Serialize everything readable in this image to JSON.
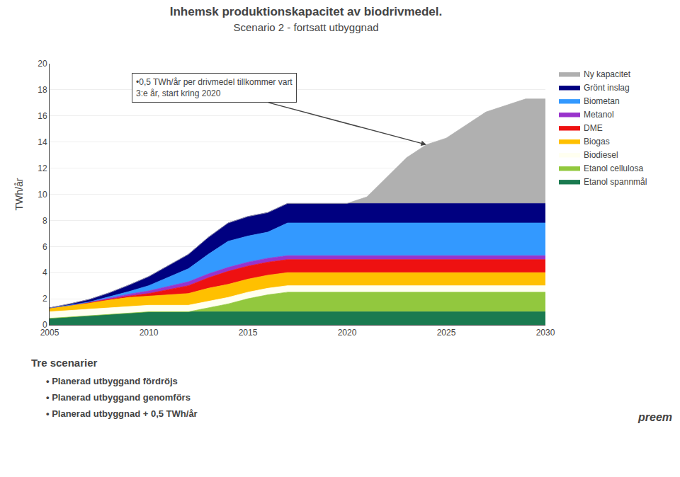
{
  "chart_data": {
    "type": "area",
    "stacked": true,
    "title": "Inhemsk produktionskapacitet av biodrivmedel.",
    "subtitle": "Scenario 2 - fortsatt utbyggnad",
    "ylabel": "TWh/år",
    "x": [
      2005,
      2006,
      2007,
      2008,
      2009,
      2010,
      2011,
      2012,
      2013,
      2014,
      2015,
      2016,
      2017,
      2018,
      2019,
      2020,
      2021,
      2022,
      2023,
      2024,
      2025,
      2026,
      2027,
      2028,
      2029,
      2030
    ],
    "xlim": [
      2005,
      2030
    ],
    "xticks": [
      2005,
      2010,
      2015,
      2020,
      2025,
      2030
    ],
    "ylim": [
      0,
      20
    ],
    "yticks": [
      0,
      2,
      4,
      6,
      8,
      10,
      12,
      14,
      16,
      18,
      20
    ],
    "grid": "y",
    "legend": "right",
    "series": [
      {
        "name": "Etanol spannmål",
        "color": "#1A7A50",
        "values": [
          0.5,
          0.6,
          0.7,
          0.8,
          0.9,
          1.0,
          1.0,
          1.0,
          1.0,
          1.0,
          1.0,
          1.0,
          1.0,
          1.0,
          1.0,
          1.0,
          1.0,
          1.0,
          1.0,
          1.0,
          1.0,
          1.0,
          1.0,
          1.0,
          1.0,
          1.0
        ]
      },
      {
        "name": "Etanol cellulosa",
        "color": "#92C83E",
        "values": [
          0.0,
          0.0,
          0.0,
          0.0,
          0.0,
          0.0,
          0.0,
          0.0,
          0.3,
          0.6,
          1.0,
          1.3,
          1.5,
          1.5,
          1.5,
          1.5,
          1.5,
          1.5,
          1.5,
          1.5,
          1.5,
          1.5,
          1.5,
          1.5,
          1.5,
          1.5
        ]
      },
      {
        "name": "Biodiesel",
        "color": "#FFFFF0",
        "values": [
          0.5,
          0.5,
          0.5,
          0.5,
          0.5,
          0.5,
          0.5,
          0.5,
          0.5,
          0.5,
          0.5,
          0.5,
          0.5,
          0.5,
          0.5,
          0.5,
          0.5,
          0.5,
          0.5,
          0.5,
          0.5,
          0.5,
          0.5,
          0.5,
          0.5,
          0.5
        ]
      },
      {
        "name": "Biogas",
        "color": "#FFC000",
        "values": [
          0.3,
          0.4,
          0.5,
          0.6,
          0.7,
          0.7,
          0.8,
          0.9,
          1.0,
          1.0,
          1.0,
          1.0,
          1.0,
          1.0,
          1.0,
          1.0,
          1.0,
          1.0,
          1.0,
          1.0,
          1.0,
          1.0,
          1.0,
          1.0,
          1.0,
          1.0
        ]
      },
      {
        "name": "DME",
        "color": "#EE1111",
        "values": [
          0.0,
          0.0,
          0.0,
          0.05,
          0.1,
          0.2,
          0.4,
          0.6,
          0.8,
          1.0,
          1.0,
          1.0,
          1.0,
          1.0,
          1.0,
          1.0,
          1.0,
          1.0,
          1.0,
          1.0,
          1.0,
          1.0,
          1.0,
          1.0,
          1.0,
          1.0
        ]
      },
      {
        "name": "Metanol",
        "color": "#9933CC",
        "values": [
          0.0,
          0.0,
          0.05,
          0.1,
          0.15,
          0.2,
          0.25,
          0.3,
          0.3,
          0.3,
          0.3,
          0.3,
          0.3,
          0.3,
          0.3,
          0.3,
          0.3,
          0.3,
          0.3,
          0.3,
          0.3,
          0.3,
          0.3,
          0.3,
          0.3,
          0.3
        ]
      },
      {
        "name": "Biometan",
        "color": "#3399FF",
        "values": [
          0.0,
          0.0,
          0.0,
          0.1,
          0.2,
          0.4,
          0.7,
          1.0,
          1.5,
          2.0,
          2.0,
          2.0,
          2.5,
          2.5,
          2.5,
          2.5,
          2.5,
          2.5,
          2.5,
          2.5,
          2.5,
          2.5,
          2.5,
          2.5,
          2.5,
          2.5
        ]
      },
      {
        "name": "Grönt inslag",
        "color": "#000080",
        "values": [
          0.0,
          0.1,
          0.2,
          0.3,
          0.5,
          0.7,
          0.9,
          1.1,
          1.3,
          1.4,
          1.5,
          1.5,
          1.5,
          1.5,
          1.5,
          1.5,
          1.5,
          1.5,
          1.5,
          1.5,
          1.5,
          1.5,
          1.5,
          1.5,
          1.5,
          1.5
        ]
      },
      {
        "name": "Ny kapacitet",
        "color": "#B0B0B0",
        "values": [
          0.0,
          0.0,
          0.0,
          0.0,
          0.0,
          0.0,
          0.0,
          0.0,
          0.0,
          0.0,
          0.0,
          0.0,
          0.0,
          0.0,
          0.0,
          0.0,
          0.5,
          2.0,
          3.5,
          4.5,
          5.0,
          6.0,
          7.0,
          7.5,
          8.0,
          8.0
        ]
      }
    ],
    "annotations": [
      {
        "text": "•0,5 TWh/år per drivmedel tillkommer vart\n3:e år, start kring 2020",
        "x": 2024.0,
        "y": 13.8
      },
      {
        "text": "Tre scenarier"
      },
      {
        "text": "• Planerad utbyggand fördröjs"
      },
      {
        "text": "• Planerad utbyggand genomförs"
      },
      {
        "text": "• Planerad utbyggnad + 0,5 TWh/år"
      },
      {
        "text": "preem"
      }
    ]
  }
}
